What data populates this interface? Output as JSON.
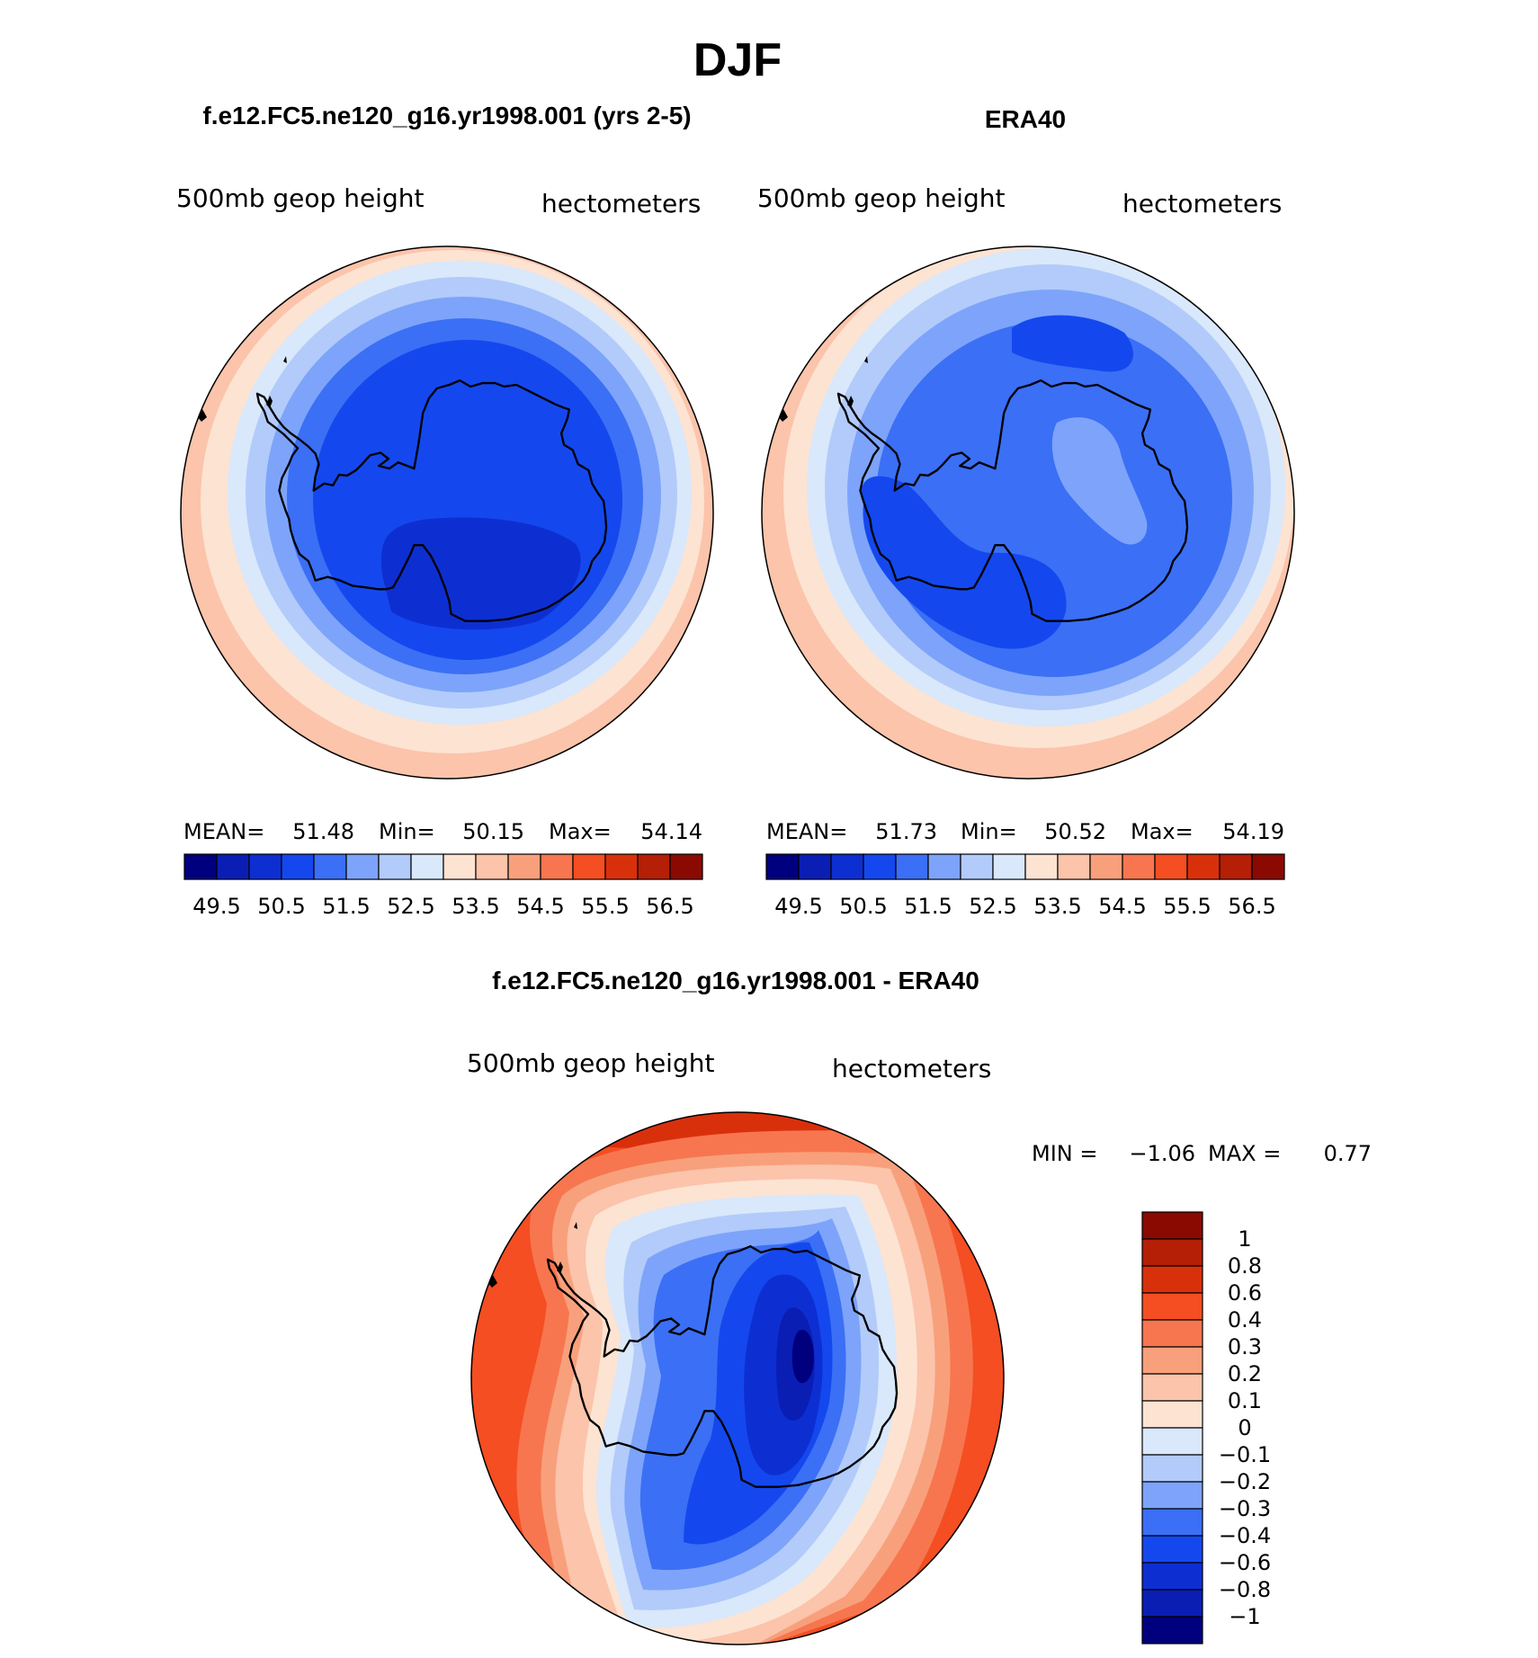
{
  "title": "DJF",
  "panels": [
    {
      "title": "f.e12.FC5.ne120_g16.yr1998.001 (yrs 2-5)",
      "left_label": "500mb geop height",
      "right_label": "hectometers",
      "stats": {
        "mean_label": "MEAN=",
        "mean": "51.48",
        "min_label": "Min=",
        "min": "50.15",
        "max_label": "Max=",
        "max": "54.14"
      }
    },
    {
      "title": "ERA40",
      "left_label": "500mb geop height",
      "right_label": "hectometers",
      "stats": {
        "mean_label": "MEAN=",
        "mean": "51.73",
        "min_label": "Min=",
        "min": "50.52",
        "max_label": "Max=",
        "max": "54.19"
      }
    },
    {
      "title": "f.e12.FC5.ne120_g16.yr1998.001 - ERA40",
      "left_label": "500mb geop height",
      "right_label": "hectometers",
      "stats": {
        "min_label": "MIN =",
        "min": "−1.06",
        "max_label": "MAX =",
        "max": "0.77"
      }
    }
  ],
  "chart_data": [
    {
      "type": "heatmap",
      "projection": "south-polar-stereographic",
      "title": "f.e12.FC5.ne120_g16.yr1998.001 (yrs 2-5)",
      "variable": "500mb geop height",
      "units": "hectometers",
      "mean": 51.48,
      "min": 50.15,
      "max": 54.14,
      "contour_levels": [
        49.5,
        50,
        50.5,
        51,
        51.5,
        52,
        52.5,
        53,
        53.5,
        54,
        54.5,
        55,
        55.5,
        56,
        56.5
      ],
      "colorbar_labels": [
        "49.5",
        "50.5",
        "51.5",
        "52.5",
        "53.5",
        "54.5",
        "55.5",
        "56.5"
      ],
      "colors": [
        "#00007f",
        "#0a1eb4",
        "#0d2fd2",
        "#1448ee",
        "#3b6ff5",
        "#7da4fa",
        "#b2cbfa",
        "#d9e8fb",
        "#fde3d2",
        "#fbc4ab",
        "#f8a07c",
        "#f7764f",
        "#f44e22",
        "#d9300c",
        "#b41f05",
        "#8a0a02"
      ]
    },
    {
      "type": "heatmap",
      "projection": "south-polar-stereographic",
      "title": "ERA40",
      "variable": "500mb geop height",
      "units": "hectometers",
      "mean": 51.73,
      "min": 50.52,
      "max": 54.19,
      "contour_levels": [
        49.5,
        50,
        50.5,
        51,
        51.5,
        52,
        52.5,
        53,
        53.5,
        54,
        54.5,
        55,
        55.5,
        56,
        56.5
      ],
      "colorbar_labels": [
        "49.5",
        "50.5",
        "51.5",
        "52.5",
        "53.5",
        "54.5",
        "55.5",
        "56.5"
      ],
      "colors": [
        "#00007f",
        "#0a1eb4",
        "#0d2fd2",
        "#1448ee",
        "#3b6ff5",
        "#7da4fa",
        "#b2cbfa",
        "#d9e8fb",
        "#fde3d2",
        "#fbc4ab",
        "#f8a07c",
        "#f7764f",
        "#f44e22",
        "#d9300c",
        "#b41f05",
        "#8a0a02"
      ]
    },
    {
      "type": "heatmap",
      "projection": "south-polar-stereographic",
      "title": "f.e12.FC5.ne120_g16.yr1998.001 - ERA40",
      "variable": "500mb geop height",
      "units": "hectometers",
      "min": -1.06,
      "max": 0.77,
      "colorbar_labels": [
        "1",
        "0.8",
        "0.6",
        "0.4",
        "0.3",
        "0.2",
        "0.1",
        "0",
        "−0.1",
        "−0.2",
        "−0.3",
        "−0.4",
        "−0.6",
        "−0.8",
        "−1"
      ],
      "colors": [
        "#8a0a02",
        "#b41f05",
        "#d9300c",
        "#f44e22",
        "#f7764f",
        "#f8a07c",
        "#fbc4ab",
        "#fde3d2",
        "#d9e8fb",
        "#b2cbfa",
        "#7da4fa",
        "#3b6ff5",
        "#1448ee",
        "#0d2fd2",
        "#0a1eb4",
        "#00007f"
      ]
    }
  ]
}
